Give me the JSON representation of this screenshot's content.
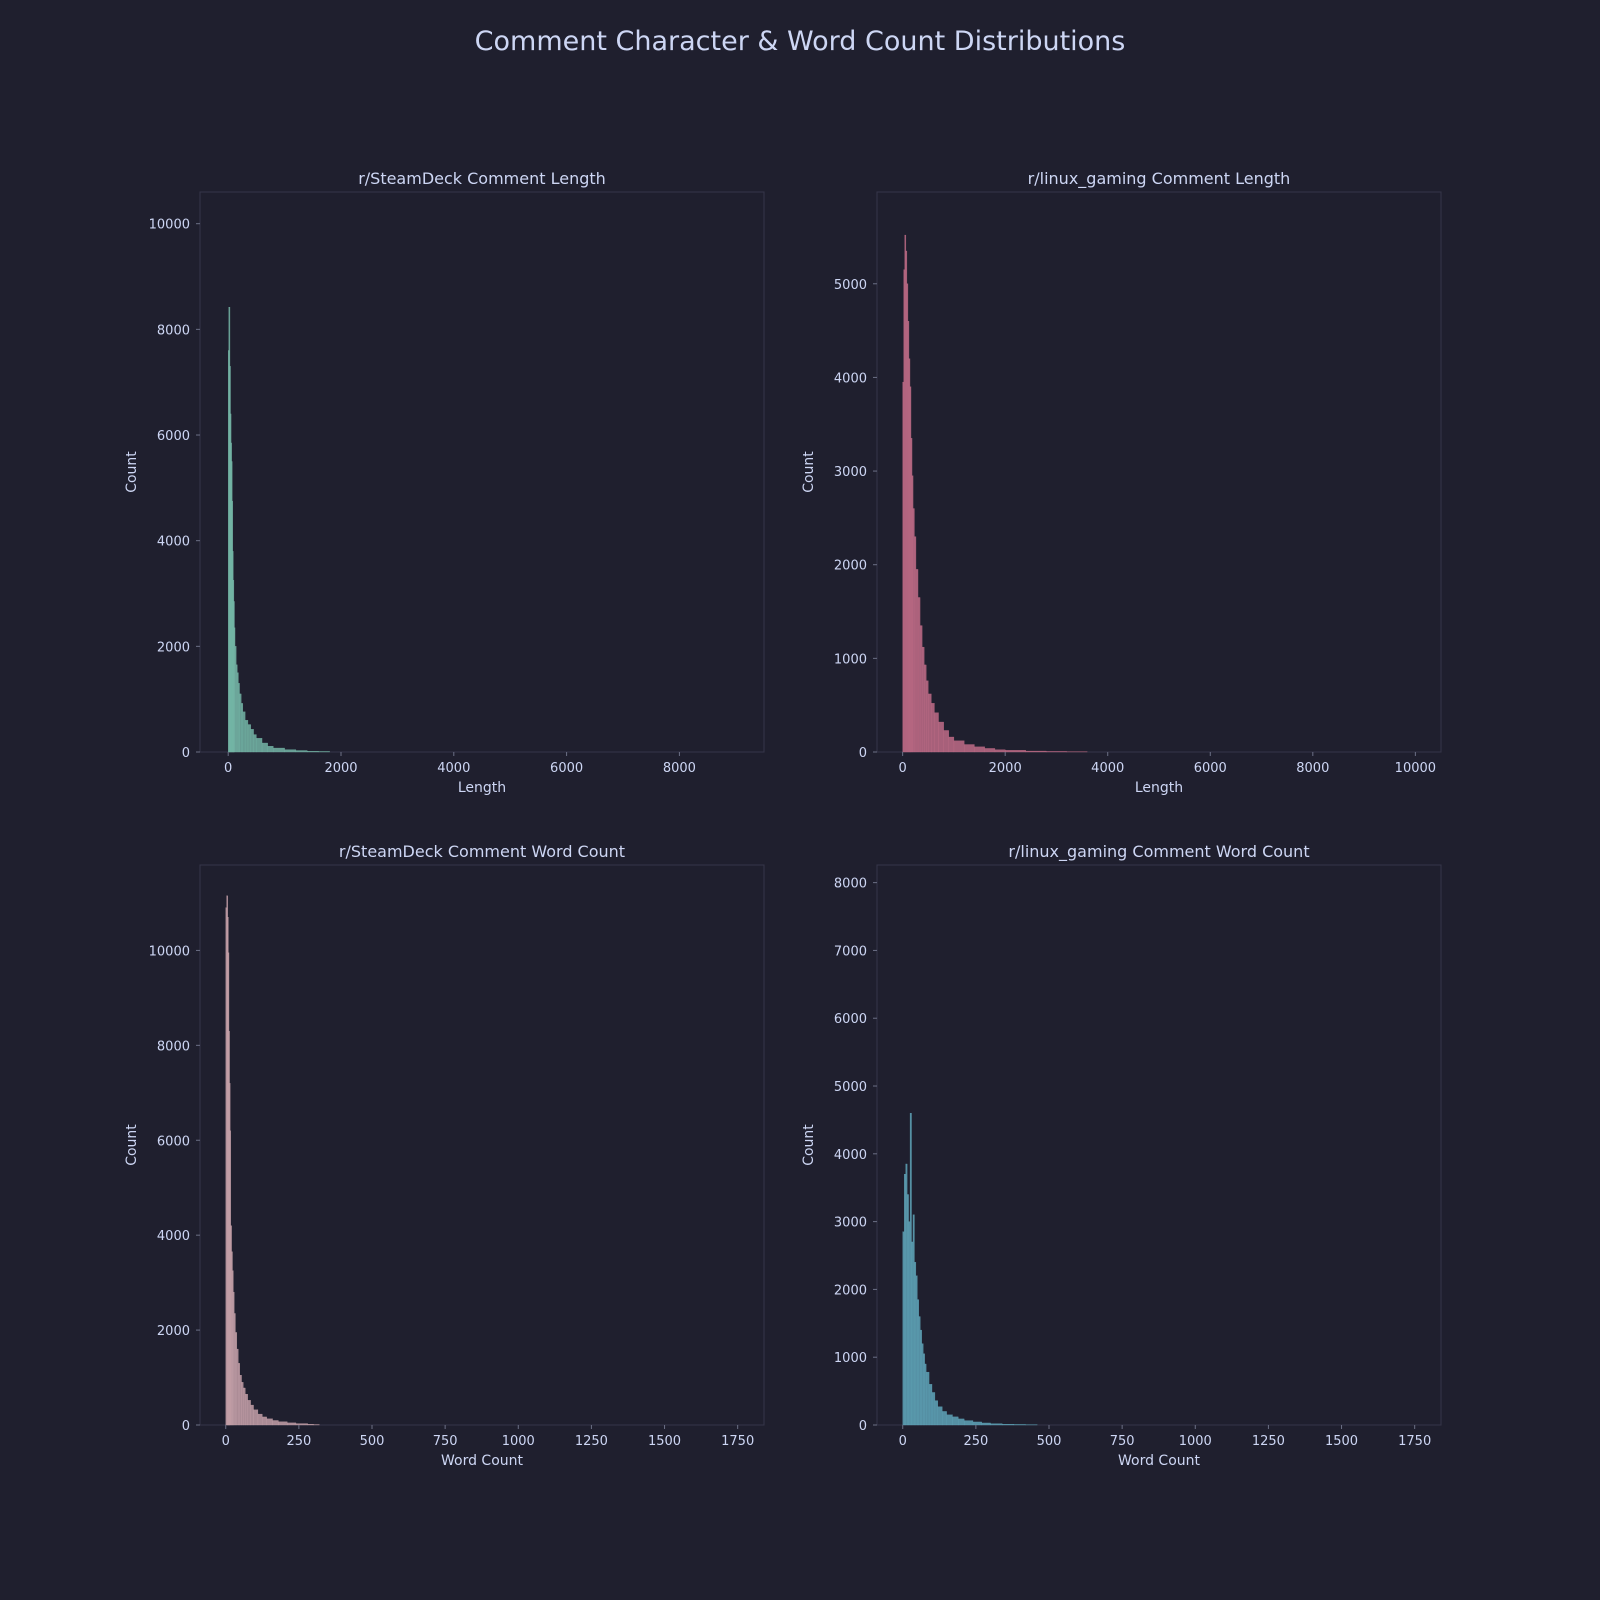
{
  "title": "Comment Character & Word Count Distributions",
  "colors": {
    "background": "#1f1f2e",
    "text": "#cdd6f4",
    "frame": "#363649"
  },
  "chart_data": [
    {
      "type": "bar",
      "title": "r/SteamDeck Comment Length",
      "xlabel": "Length",
      "ylabel": "Count",
      "xlim": [
        -500,
        9500
      ],
      "ylim": [
        0,
        10600
      ],
      "xticks": [
        0,
        2000,
        4000,
        6000,
        8000
      ],
      "yticks": [
        0,
        2000,
        4000,
        6000,
        8000,
        10000
      ],
      "color": "#74b5a6",
      "x": [
        0,
        10,
        20,
        30,
        40,
        50,
        60,
        70,
        80,
        90,
        100,
        120,
        140,
        160,
        180,
        200,
        230,
        260,
        300,
        350,
        400,
        450,
        500,
        600,
        700,
        800,
        1000,
        1200,
        1400,
        1600
      ],
      "values": [
        7600,
        8420,
        7300,
        6400,
        5850,
        5500,
        4750,
        3800,
        3250,
        2850,
        2350,
        2000,
        1650,
        1500,
        1300,
        1100,
        920,
        760,
        600,
        520,
        430,
        330,
        260,
        170,
        110,
        75,
        45,
        28,
        15,
        10
      ]
    },
    {
      "type": "bar",
      "title": "r/linux_gaming Comment Length",
      "xlabel": "Length",
      "ylabel": "Count",
      "xlim": [
        -500,
        10500
      ],
      "ylim": [
        0,
        5980
      ],
      "xticks": [
        0,
        2000,
        4000,
        6000,
        8000,
        10000
      ],
      "yticks": [
        0,
        1000,
        2000,
        3000,
        4000,
        5000
      ],
      "color": "#c06c87",
      "x": [
        0,
        20,
        40,
        60,
        80,
        100,
        120,
        140,
        160,
        180,
        200,
        230,
        260,
        300,
        340,
        380,
        420,
        460,
        500,
        560,
        620,
        700,
        800,
        900,
        1000,
        1200,
        1400,
        1600,
        1800,
        2000,
        2400,
        2800,
        3200
      ],
      "values": [
        3950,
        5150,
        5520,
        5350,
        5000,
        4600,
        4200,
        3900,
        3350,
        2950,
        2600,
        2300,
        1950,
        1650,
        1350,
        1120,
        930,
        760,
        620,
        520,
        420,
        320,
        230,
        160,
        120,
        80,
        55,
        38,
        25,
        18,
        10,
        6,
        3
      ]
    },
    {
      "type": "bar",
      "title": "r/SteamDeck Comment Word Count",
      "xlabel": "Word Count",
      "ylabel": "Count",
      "xlim": [
        -88,
        1840
      ],
      "ylim": [
        0,
        11800
      ],
      "xticks": [
        0,
        250,
        500,
        750,
        1000,
        1250,
        1500,
        1750
      ],
      "yticks": [
        0,
        2000,
        4000,
        6000,
        8000,
        10000
      ],
      "color": "#c4a0a8",
      "x": [
        0,
        3,
        5,
        7,
        9,
        11,
        13,
        16,
        19,
        22,
        25,
        29,
        33,
        38,
        43,
        48,
        54,
        60,
        67,
        75,
        85,
        95,
        110,
        125,
        140,
        160,
        180,
        210,
        240,
        280,
        300
      ],
      "values": [
        10900,
        11150,
        10700,
        9950,
        8300,
        7200,
        6200,
        4200,
        3650,
        3250,
        2800,
        2350,
        1950,
        1600,
        1300,
        1050,
        900,
        780,
        650,
        520,
        420,
        320,
        230,
        170,
        130,
        95,
        70,
        45,
        30,
        18,
        10
      ]
    },
    {
      "type": "bar",
      "title": "r/linux_gaming Comment Word Count",
      "xlabel": "Word Count",
      "ylabel": "Count",
      "xlim": [
        -88,
        1840
      ],
      "ylim": [
        0,
        8260
      ],
      "xticks": [
        0,
        250,
        500,
        750,
        1000,
        1250,
        1500,
        1750
      ],
      "yticks": [
        0,
        1000,
        2000,
        3000,
        4000,
        5000,
        6000,
        7000,
        8000
      ],
      "color": "#5fa4b8",
      "x": [
        0,
        5,
        10,
        15,
        20,
        25,
        30,
        35,
        40,
        45,
        50,
        55,
        60,
        65,
        70,
        75,
        80,
        90,
        100,
        110,
        120,
        135,
        150,
        170,
        190,
        210,
        240,
        270,
        300,
        340,
        380,
        420
      ],
      "values": [
        2850,
        3700,
        3850,
        3400,
        3000,
        4600,
        2700,
        3100,
        2400,
        2200,
        1850,
        1600,
        1400,
        1200,
        1050,
        900,
        780,
        600,
        480,
        360,
        270,
        200,
        150,
        120,
        90,
        65,
        45,
        30,
        20,
        12,
        8,
        5
      ]
    }
  ]
}
